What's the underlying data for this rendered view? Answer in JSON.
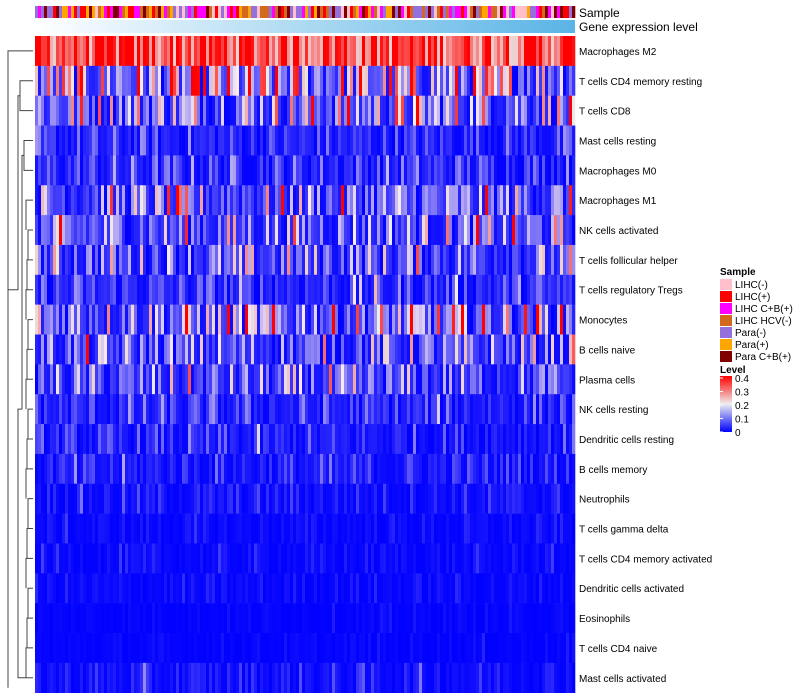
{
  "chart_data": {
    "type": "heatmap",
    "annotation_labels": [
      "Sample",
      "Gene expression level"
    ],
    "rows": [
      "Macrophages M2",
      "T cells CD4 memory resting",
      "T cells CD8",
      "Mast cells resting",
      "Macrophages M0",
      "Macrophages M1",
      "NK cells activated",
      "T cells follicular helper",
      "T cells regulatory  Tregs",
      "Monocytes",
      "B cells naive",
      "Plasma cells",
      "NK cells resting",
      "Dendritic cells resting",
      "B cells memory",
      "Neutrophils",
      "T cells gamma delta",
      "T cells CD4 memory activated",
      "Dendritic cells activated",
      "Eosinophils",
      "T cells CD4 naive",
      "Mast cells activated"
    ],
    "row_mean_level_estimate": [
      0.32,
      0.17,
      0.15,
      0.04,
      0.05,
      0.1,
      0.1,
      0.09,
      0.05,
      0.14,
      0.08,
      0.07,
      0.04,
      0.03,
      0.03,
      0.02,
      0.01,
      0.01,
      0.01,
      0.005,
      0.005,
      0.02
    ],
    "n_columns": 180,
    "legend_sample": {
      "title": "Sample",
      "entries": [
        {
          "label": "LIHC(-)",
          "color": "#ffc0cb"
        },
        {
          "label": "LIHC(+)",
          "color": "#ff0000"
        },
        {
          "label": "LIHC C+B(+)",
          "color": "#ff00ff"
        },
        {
          "label": "LIHC HCV(-)",
          "color": "#d2691e"
        },
        {
          "label": "Para(-)",
          "color": "#9370db"
        },
        {
          "label": "Para(+)",
          "color": "#ffa500"
        },
        {
          "label": "Para C+B(+)",
          "color": "#800000"
        }
      ]
    },
    "legend_level": {
      "title": "Level",
      "ticks": [
        "0.4",
        "0.3",
        "0.2",
        "0.1",
        "0"
      ],
      "range": [
        0,
        0.4
      ],
      "colors": {
        "low": "#0000ff",
        "mid": "#ffffff",
        "high": "#ff0000"
      }
    },
    "gene_expression_colors": {
      "low": "#ffffff",
      "high": "#5ab4e6"
    }
  }
}
